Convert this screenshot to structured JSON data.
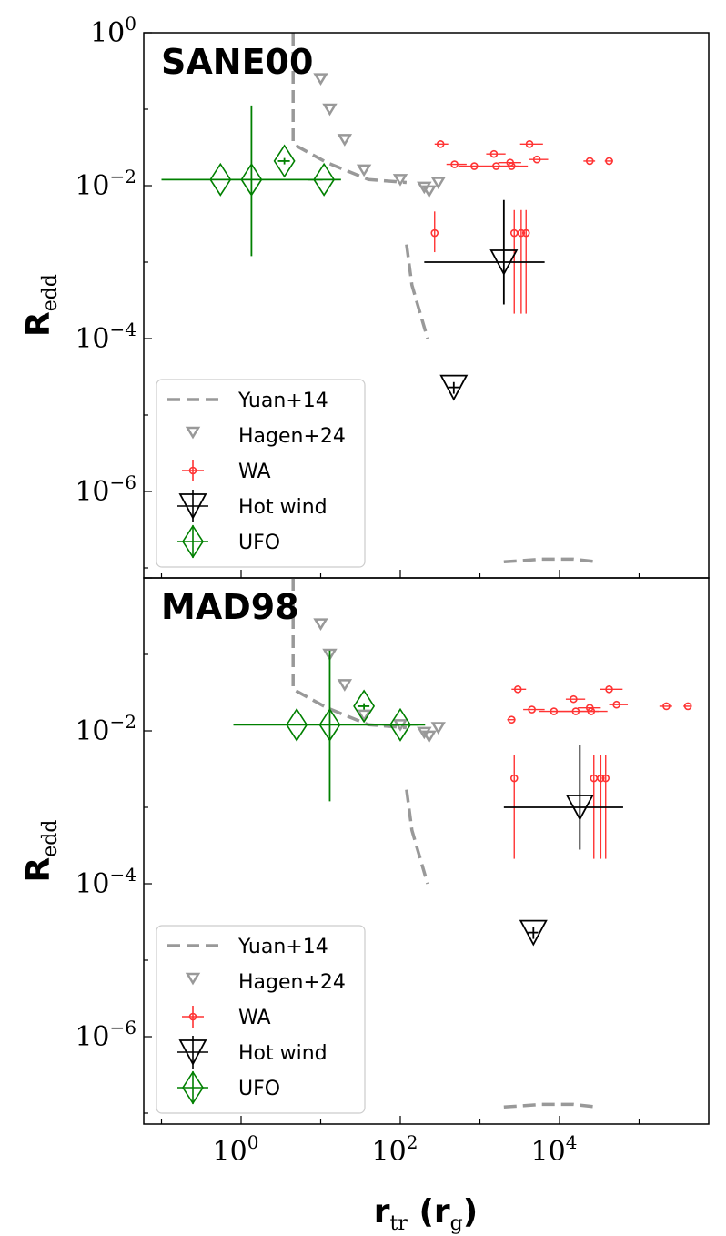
{
  "chart_data": [
    {
      "type": "scatter",
      "title": "SANE00",
      "xlabel": "",
      "ylabel": "R",
      "ylabel_sub": "edd",
      "xscale": "log",
      "yscale": "log",
      "xlim": [
        0.07,
        500000
      ],
      "ylim": [
        1e-07,
        1
      ],
      "x_ticks": [
        {
          "base": "10",
          "exp": "0",
          "value": 1
        },
        {
          "base": "10",
          "exp": "2",
          "value": 100
        },
        {
          "base": "10",
          "exp": "4",
          "value": 10000
        }
      ],
      "y_ticks": [
        {
          "base": "10",
          "exp": "0",
          "value": 1
        },
        {
          "base": "10",
          "exp": "−2",
          "value": 0.01
        },
        {
          "base": "10",
          "exp": "−4",
          "value": 0.0001
        },
        {
          "base": "10",
          "exp": "−6",
          "value": 1e-06
        }
      ],
      "legend_position": "lower-left",
      "series": [
        {
          "name": "Yuan+14",
          "kind": "dashed-line",
          "color": "#999999",
          "lines": [
            [
              [
                4.5,
                1
              ],
              [
                4.5,
                0.035
              ],
              [
                12,
                0.02
              ],
              [
                40,
                0.012
              ],
              [
                120,
                0.011
              ]
            ],
            [
              [
                120,
                0.0017
              ],
              [
                140,
                0.0005
              ],
              [
                170,
                0.00025
              ],
              [
                220,
                0.0001
              ]
            ],
            [
              [
                2000,
                1.2e-07
              ],
              [
                6000,
                1.3e-07
              ],
              [
                15000,
                1.3e-07
              ],
              [
                30000,
                1.2e-07
              ]
            ]
          ]
        },
        {
          "name": "Hagen+24",
          "kind": "triangle-down",
          "color": "#999999",
          "points": [
            {
              "x": 10,
              "y": 0.25
            },
            {
              "x": 13,
              "y": 0.1
            },
            {
              "x": 20,
              "y": 0.04
            },
            {
              "x": 35,
              "y": 0.016
            },
            {
              "x": 100,
              "y": 0.012
            },
            {
              "x": 200,
              "y": 0.0095
            },
            {
              "x": 230,
              "y": 0.0085
            },
            {
              "x": 300,
              "y": 0.011
            }
          ]
        },
        {
          "name": "WA",
          "kind": "circle-errorbar",
          "color": "#ff3333",
          "points": [
            {
              "x": 320,
              "y": 0.035,
              "xerr": [
                50,
                80
              ]
            },
            {
              "x": 480,
              "y": 0.019,
              "xerr": [
                100,
                200
              ]
            },
            {
              "x": 850,
              "y": 0.018,
              "xerr": [
                300,
                600
              ]
            },
            {
              "x": 1500,
              "y": 0.026,
              "xerr": [
                300,
                600
              ]
            },
            {
              "x": 1600,
              "y": 0.018,
              "xerr": [
                800,
                1500
              ]
            },
            {
              "x": 2400,
              "y": 0.02,
              "xerr": [
                700,
                900
              ]
            },
            {
              "x": 2500,
              "y": 0.018,
              "xerr": [
                800,
                1500
              ]
            },
            {
              "x": 4200,
              "y": 0.035,
              "xerr": [
                1000,
                2000
              ]
            },
            {
              "x": 5200,
              "y": 0.022,
              "xerr": [
                1000,
                2000
              ]
            },
            {
              "x": 24000,
              "y": 0.021,
              "xerr": [
                4000,
                4000
              ]
            },
            {
              "x": 42000,
              "y": 0.021,
              "xerr": [
                5000,
                5000
              ]
            },
            {
              "x": 270,
              "y": 0.0024,
              "yerr": [
                0.00105,
                0.0022
              ]
            },
            {
              "x": 2700,
              "y": 0.0024,
              "yerr": [
                0.002188,
                0.0024
              ]
            },
            {
              "x": 3300,
              "y": 0.0024,
              "yerr": [
                0.002188,
                0.0024
              ]
            },
            {
              "x": 3800,
              "y": 0.0024,
              "yerr": [
                0.002188,
                0.0024
              ]
            }
          ]
        },
        {
          "name": "Hot wind",
          "kind": "big-triangle-errorbar",
          "color": "#000000",
          "points": [
            {
              "x": 2000,
              "y": 0.001,
              "xerr": [
                1800,
                4500
              ],
              "yerr": [
                0.00072,
                0.0055
              ]
            },
            {
              "x": 470,
              "y": 2.3e-05,
              "xerr": [
                70,
                70
              ],
              "yerr": [
                4e-06,
                4e-06
              ]
            }
          ]
        },
        {
          "name": "UFO",
          "kind": "diamond-errorbar",
          "color": "#008000",
          "points": [
            {
              "x": 0.55,
              "y": 0.012,
              "xerr": [
                0.45,
                10
              ]
            },
            {
              "x": 1.35,
              "y": 0.012,
              "yerr": [
                0.0108,
                0.1
              ]
            },
            {
              "x": 3.5,
              "y": 0.021,
              "xerr": [
                0.6,
                0.6
              ],
              "yerr": [
                0.002,
                0.002
              ]
            },
            {
              "x": 11,
              "y": 0.012,
              "xerr": [
                4,
                7
              ]
            }
          ]
        }
      ]
    },
    {
      "type": "scatter",
      "title": "MAD98",
      "xlabel": "r",
      "xlabel_sub": "tr",
      "xlabel_unit": "(r",
      "xlabel_unit_sub": "g",
      "xlabel_unit_end": ")",
      "ylabel": "R",
      "ylabel_sub": "edd",
      "xscale": "log",
      "yscale": "log",
      "xlim": [
        0.07,
        500000
      ],
      "ylim": [
        1e-07,
        1
      ],
      "x_ticks": [
        {
          "base": "10",
          "exp": "0",
          "value": 1
        },
        {
          "base": "10",
          "exp": "2",
          "value": 100
        },
        {
          "base": "10",
          "exp": "4",
          "value": 10000
        }
      ],
      "y_ticks": [
        {
          "base": "10",
          "exp": "−2",
          "value": 0.01
        },
        {
          "base": "10",
          "exp": "−4",
          "value": 0.0001
        },
        {
          "base": "10",
          "exp": "−6",
          "value": 1e-06
        }
      ],
      "legend_position": "lower-left",
      "series": [
        {
          "name": "Yuan+14",
          "kind": "dashed-line",
          "color": "#999999",
          "lines": [
            [
              [
                4.5,
                1
              ],
              [
                4.5,
                0.035
              ],
              [
                12,
                0.02
              ],
              [
                40,
                0.012
              ],
              [
                120,
                0.011
              ]
            ],
            [
              [
                120,
                0.0017
              ],
              [
                140,
                0.0005
              ],
              [
                170,
                0.00025
              ],
              [
                220,
                0.0001
              ]
            ],
            [
              [
                2000,
                1.2e-07
              ],
              [
                6000,
                1.3e-07
              ],
              [
                15000,
                1.3e-07
              ],
              [
                30000,
                1.2e-07
              ]
            ]
          ]
        },
        {
          "name": "Hagen+24",
          "kind": "triangle-down",
          "color": "#999999",
          "points": [
            {
              "x": 10,
              "y": 0.25
            },
            {
              "x": 13,
              "y": 0.1
            },
            {
              "x": 20,
              "y": 0.04
            },
            {
              "x": 35,
              "y": 0.016
            },
            {
              "x": 100,
              "y": 0.012
            },
            {
              "x": 200,
              "y": 0.0095
            },
            {
              "x": 230,
              "y": 0.0085
            },
            {
              "x": 300,
              "y": 0.011
            }
          ]
        },
        {
          "name": "WA",
          "kind": "circle-errorbar",
          "color": "#ff3333",
          "points": [
            {
              "x": 3000,
              "y": 0.035,
              "xerr": [
                500,
                800
              ]
            },
            {
              "x": 4500,
              "y": 0.019,
              "xerr": [
                1000,
                2000
              ]
            },
            {
              "x": 8500,
              "y": 0.018,
              "xerr": [
                3000,
                6000
              ]
            },
            {
              "x": 15000,
              "y": 0.026,
              "xerr": [
                3000,
                6000
              ]
            },
            {
              "x": 16000,
              "y": 0.018,
              "xerr": [
                8000,
                15000
              ]
            },
            {
              "x": 24000,
              "y": 0.02,
              "xerr": [
                7000,
                9000
              ]
            },
            {
              "x": 25000,
              "y": 0.018,
              "xerr": [
                8000,
                15000
              ]
            },
            {
              "x": 42000,
              "y": 0.035,
              "xerr": [
                10000,
                20000
              ]
            },
            {
              "x": 52000,
              "y": 0.022,
              "xerr": [
                10000,
                20000
              ]
            },
            {
              "x": 2500,
              "y": 0.014,
              "xerr": [
                300,
                300
              ]
            },
            {
              "x": 220000,
              "y": 0.021,
              "xerr": [
                40000,
                40000
              ]
            },
            {
              "x": 410000,
              "y": 0.021,
              "xerr": [
                50000,
                50000
              ]
            },
            {
              "x": 2700,
              "y": 0.0024,
              "yerr": [
                0.002188,
                0.0024
              ]
            },
            {
              "x": 27000,
              "y": 0.0024,
              "yerr": [
                0.002188,
                0.0024
              ]
            },
            {
              "x": 33000,
              "y": 0.0024,
              "yerr": [
                0.002188,
                0.0024
              ]
            },
            {
              "x": 38000,
              "y": 0.0024,
              "yerr": [
                0.002188,
                0.0024
              ]
            }
          ]
        },
        {
          "name": "Hot wind",
          "kind": "big-triangle-errorbar",
          "color": "#000000",
          "points": [
            {
              "x": 18000,
              "y": 0.001,
              "xerr": [
                16000,
                45000
              ],
              "yerr": [
                0.00072,
                0.0055
              ]
            },
            {
              "x": 4700,
              "y": 2.3e-05,
              "xerr": [
                700,
                700
              ],
              "yerr": [
                4e-06,
                4e-06
              ]
            }
          ]
        },
        {
          "name": "UFO",
          "kind": "diamond-errorbar",
          "color": "#008000",
          "points": [
            {
              "x": 5,
              "y": 0.012,
              "xerr": [
                4.2,
                200
              ]
            },
            {
              "x": 13,
              "y": 0.012,
              "yerr": [
                0.0108,
                0.1
              ]
            },
            {
              "x": 35,
              "y": 0.021,
              "xerr": [
                6,
                6
              ],
              "yerr": [
                0.002,
                0.002
              ]
            },
            {
              "x": 100,
              "y": 0.012,
              "xerr": [
                40,
                70
              ]
            }
          ]
        }
      ]
    }
  ]
}
